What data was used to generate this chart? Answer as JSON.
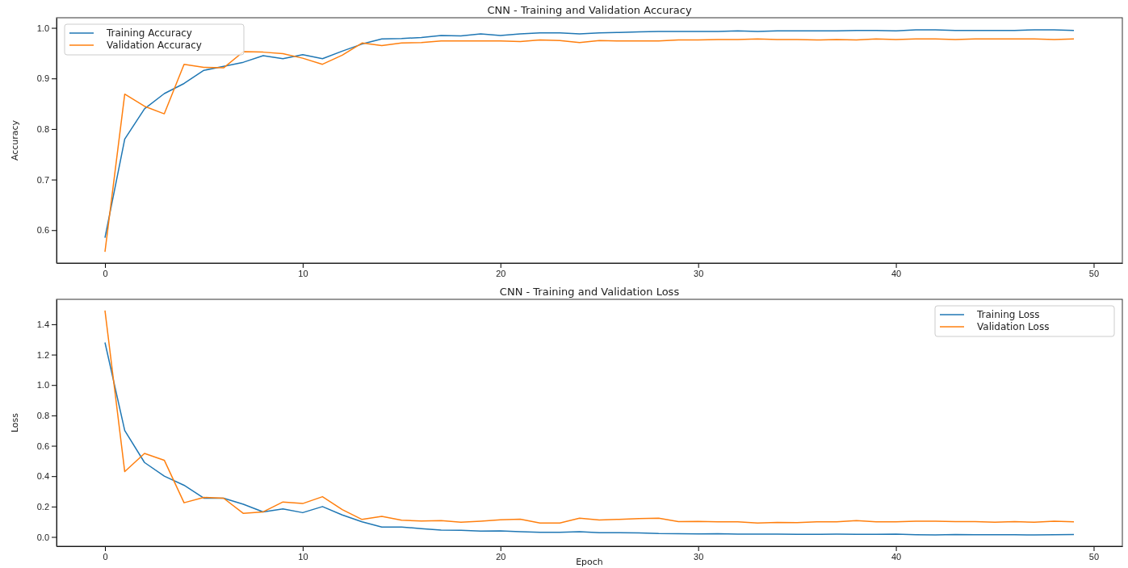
{
  "chart_data": [
    {
      "type": "line",
      "title": "CNN - Training and Validation Accuracy",
      "ylabel": "Accuracy",
      "x": [
        0,
        1,
        2,
        3,
        4,
        5,
        6,
        7,
        8,
        9,
        10,
        11,
        12,
        13,
        14,
        15,
        16,
        17,
        18,
        19,
        20,
        21,
        22,
        23,
        24,
        25,
        26,
        27,
        28,
        29,
        30,
        31,
        32,
        33,
        34,
        35,
        36,
        37,
        38,
        39,
        40,
        41,
        42,
        43,
        44,
        45,
        46,
        47,
        48,
        49
      ],
      "series": [
        {
          "name": "Training Accuracy",
          "color": "#1f77b4",
          "values": [
            0.585,
            0.78,
            0.84,
            0.87,
            0.89,
            0.916,
            0.924,
            0.932,
            0.945,
            0.939,
            0.947,
            0.939,
            0.954,
            0.968,
            0.978,
            0.979,
            0.981,
            0.985,
            0.984,
            0.988,
            0.985,
            0.988,
            0.99,
            0.99,
            0.988,
            0.99,
            0.991,
            0.992,
            0.993,
            0.993,
            0.993,
            0.993,
            0.994,
            0.993,
            0.994,
            0.994,
            0.994,
            0.994,
            0.995,
            0.995,
            0.994,
            0.996,
            0.996,
            0.995,
            0.995,
            0.995,
            0.995,
            0.996,
            0.996,
            0.995
          ]
        },
        {
          "name": "Validation Accuracy",
          "color": "#ff7f0e",
          "values": [
            0.557,
            0.869,
            0.845,
            0.83,
            0.928,
            0.922,
            0.921,
            0.953,
            0.952,
            0.949,
            0.94,
            0.928,
            0.946,
            0.97,
            0.965,
            0.97,
            0.971,
            0.974,
            0.974,
            0.974,
            0.974,
            0.973,
            0.976,
            0.975,
            0.971,
            0.975,
            0.974,
            0.974,
            0.974,
            0.976,
            0.976,
            0.977,
            0.977,
            0.978,
            0.977,
            0.977,
            0.976,
            0.977,
            0.976,
            0.978,
            0.977,
            0.978,
            0.978,
            0.977,
            0.978,
            0.978,
            0.978,
            0.978,
            0.977,
            0.978
          ]
        }
      ],
      "xlim": [
        -2.45,
        51.45
      ],
      "xticks": [
        0,
        10,
        20,
        30,
        40,
        50
      ],
      "ylim": [
        0.535,
        1.02
      ],
      "yticks": [
        {
          "value": 0.6,
          "label": "0.6"
        },
        {
          "value": 0.7,
          "label": "0.7"
        },
        {
          "value": 0.8,
          "label": "0.8"
        },
        {
          "value": 0.9,
          "label": "0.9"
        },
        {
          "value": 1.0,
          "label": "1.0"
        }
      ],
      "grid": false,
      "legend": "top left",
      "line_style": "solid",
      "marker": "none"
    },
    {
      "type": "line",
      "title": "CNN - Training and Validation Loss",
      "xlabel": "Epoch",
      "ylabel": "Loss",
      "x": [
        0,
        1,
        2,
        3,
        4,
        5,
        6,
        7,
        8,
        9,
        10,
        11,
        12,
        13,
        14,
        15,
        16,
        17,
        18,
        19,
        20,
        21,
        22,
        23,
        24,
        25,
        26,
        27,
        28,
        29,
        30,
        31,
        32,
        33,
        34,
        35,
        36,
        37,
        38,
        39,
        40,
        41,
        42,
        43,
        44,
        45,
        46,
        47,
        48,
        49
      ],
      "series": [
        {
          "name": "Training Loss",
          "color": "#1f77b4",
          "values": [
            1.28,
            0.7,
            0.49,
            0.4,
            0.34,
            0.255,
            0.255,
            0.215,
            0.165,
            0.185,
            0.16,
            0.2,
            0.145,
            0.1,
            0.065,
            0.065,
            0.055,
            0.045,
            0.044,
            0.038,
            0.04,
            0.035,
            0.03,
            0.03,
            0.035,
            0.028,
            0.028,
            0.026,
            0.022,
            0.021,
            0.02,
            0.021,
            0.018,
            0.019,
            0.018,
            0.017,
            0.017,
            0.018,
            0.017,
            0.017,
            0.018,
            0.015,
            0.013,
            0.016,
            0.015,
            0.015,
            0.015,
            0.013,
            0.015,
            0.016
          ]
        },
        {
          "name": "Validation Loss",
          "color": "#ff7f0e",
          "values": [
            1.49,
            0.43,
            0.55,
            0.505,
            0.225,
            0.26,
            0.255,
            0.155,
            0.165,
            0.23,
            0.22,
            0.265,
            0.18,
            0.115,
            0.135,
            0.11,
            0.105,
            0.107,
            0.097,
            0.104,
            0.113,
            0.117,
            0.092,
            0.092,
            0.123,
            0.112,
            0.116,
            0.121,
            0.123,
            0.101,
            0.102,
            0.1,
            0.099,
            0.092,
            0.095,
            0.094,
            0.1,
            0.1,
            0.108,
            0.1,
            0.1,
            0.103,
            0.104,
            0.101,
            0.101,
            0.097,
            0.101,
            0.097,
            0.104,
            0.1
          ]
        }
      ],
      "xlim": [
        -2.45,
        51.45
      ],
      "xticks": [
        0,
        10,
        20,
        30,
        40,
        50
      ],
      "ylim": [
        -0.061,
        1.564
      ],
      "yticks": [
        {
          "value": 0,
          "label": "0.0"
        },
        {
          "value": 0.2,
          "label": "0.2"
        },
        {
          "value": 0.4,
          "label": "0.4"
        },
        {
          "value": 0.6,
          "label": "0.6"
        },
        {
          "value": 0.8,
          "label": "0.8"
        },
        {
          "value": 1.0,
          "label": "1.0"
        },
        {
          "value": 1.2,
          "label": "1.2"
        },
        {
          "value": 1.4,
          "label": "1.4"
        }
      ],
      "grid": false,
      "legend": "top right",
      "line_style": "solid",
      "marker": "none"
    }
  ]
}
